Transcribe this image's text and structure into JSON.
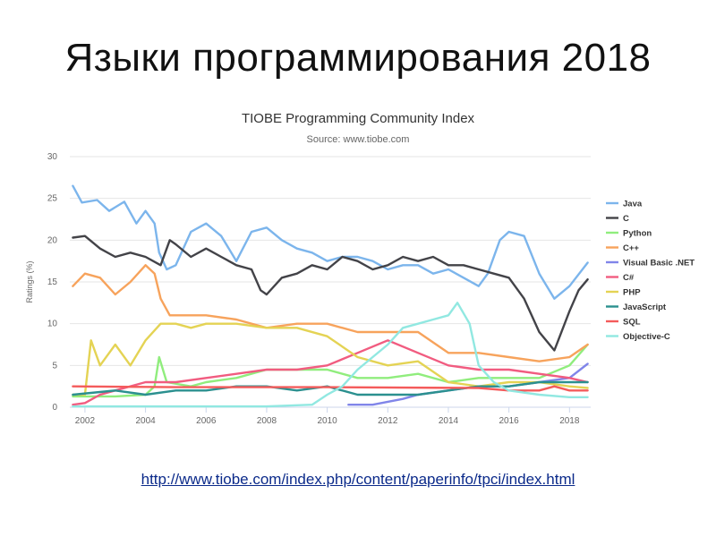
{
  "slide": {
    "title": "Языки программирования 2018",
    "link": "http://www.tiobe.com/index.php/content/paperinfo/tpci/index.html"
  },
  "chart_data": {
    "type": "line",
    "title": "TIOBE Programming Community Index",
    "subtitle": "Source: www.tiobe.com",
    "ylabel": "Ratings (%)",
    "xlabel": "",
    "xlim": [
      2001.5,
      2018.7
    ],
    "ylim": [
      0,
      30
    ],
    "x_ticks": [
      "2002",
      "2004",
      "2006",
      "2008",
      "2010",
      "2012",
      "2014",
      "2016",
      "2018"
    ],
    "y_ticks": [
      "0",
      "5",
      "10",
      "15",
      "20",
      "25",
      "30"
    ],
    "grid": true,
    "legend_position": "right",
    "series": [
      {
        "name": "Java",
        "color": "#7cb5ec",
        "points": [
          [
            2001.6,
            26.5
          ],
          [
            2001.9,
            24.5
          ],
          [
            2002.4,
            24.8
          ],
          [
            2002.8,
            23.5
          ],
          [
            2003.3,
            24.6
          ],
          [
            2003.7,
            22.0
          ],
          [
            2004.0,
            23.5
          ],
          [
            2004.3,
            22.0
          ],
          [
            2004.45,
            18.5
          ],
          [
            2004.7,
            16.5
          ],
          [
            2005.0,
            17.0
          ],
          [
            2005.5,
            21.0
          ],
          [
            2006.0,
            22.0
          ],
          [
            2006.5,
            20.5
          ],
          [
            2007.0,
            17.5
          ],
          [
            2007.5,
            21.0
          ],
          [
            2008.0,
            21.5
          ],
          [
            2008.5,
            20.0
          ],
          [
            2009.0,
            19.0
          ],
          [
            2009.5,
            18.5
          ],
          [
            2010.0,
            17.5
          ],
          [
            2010.5,
            18.0
          ],
          [
            2011.0,
            18.0
          ],
          [
            2011.5,
            17.5
          ],
          [
            2012.0,
            16.5
          ],
          [
            2012.5,
            17.0
          ],
          [
            2013.0,
            17.0
          ],
          [
            2013.5,
            16.0
          ],
          [
            2014.0,
            16.5
          ],
          [
            2014.5,
            15.5
          ],
          [
            2015.0,
            14.5
          ],
          [
            2015.3,
            16.0
          ],
          [
            2015.7,
            20.0
          ],
          [
            2016.0,
            21.0
          ],
          [
            2016.5,
            20.5
          ],
          [
            2017.0,
            16.0
          ],
          [
            2017.5,
            13.0
          ],
          [
            2018.0,
            14.5
          ],
          [
            2018.6,
            17.3
          ]
        ]
      },
      {
        "name": "C",
        "color": "#434348",
        "points": [
          [
            2001.6,
            20.3
          ],
          [
            2002.0,
            20.5
          ],
          [
            2002.5,
            19.0
          ],
          [
            2003.0,
            18.0
          ],
          [
            2003.5,
            18.5
          ],
          [
            2004.0,
            18.0
          ],
          [
            2004.5,
            17.0
          ],
          [
            2004.8,
            20.0
          ],
          [
            2005.0,
            19.5
          ],
          [
            2005.5,
            18.0
          ],
          [
            2006.0,
            19.0
          ],
          [
            2006.5,
            18.0
          ],
          [
            2007.0,
            17.0
          ],
          [
            2007.5,
            16.5
          ],
          [
            2007.8,
            14.0
          ],
          [
            2008.0,
            13.5
          ],
          [
            2008.5,
            15.5
          ],
          [
            2009.0,
            16.0
          ],
          [
            2009.5,
            17.0
          ],
          [
            2010.0,
            16.5
          ],
          [
            2010.5,
            18.0
          ],
          [
            2011.0,
            17.5
          ],
          [
            2011.5,
            16.5
          ],
          [
            2012.0,
            17.0
          ],
          [
            2012.5,
            18.0
          ],
          [
            2013.0,
            17.5
          ],
          [
            2013.5,
            18.0
          ],
          [
            2014.0,
            17.0
          ],
          [
            2014.5,
            17.0
          ],
          [
            2015.0,
            16.5
          ],
          [
            2015.5,
            16.0
          ],
          [
            2016.0,
            15.5
          ],
          [
            2016.5,
            13.0
          ],
          [
            2017.0,
            9.0
          ],
          [
            2017.5,
            6.8
          ],
          [
            2018.0,
            11.5
          ],
          [
            2018.3,
            14.0
          ],
          [
            2018.6,
            15.3
          ]
        ]
      },
      {
        "name": "Python",
        "color": "#90ed7d",
        "points": [
          [
            2001.6,
            1.3
          ],
          [
            2003.0,
            1.3
          ],
          [
            2004.0,
            1.5
          ],
          [
            2004.3,
            2.5
          ],
          [
            2004.45,
            6.0
          ],
          [
            2004.7,
            3.0
          ],
          [
            2005.5,
            2.5
          ],
          [
            2006.0,
            3.0
          ],
          [
            2007.0,
            3.5
          ],
          [
            2008.0,
            4.5
          ],
          [
            2009.0,
            4.5
          ],
          [
            2010.0,
            4.5
          ],
          [
            2011.0,
            3.5
          ],
          [
            2012.0,
            3.5
          ],
          [
            2013.0,
            4.0
          ],
          [
            2014.0,
            3.0
          ],
          [
            2015.0,
            3.5
          ],
          [
            2016.0,
            3.5
          ],
          [
            2017.0,
            3.5
          ],
          [
            2018.0,
            5.0
          ],
          [
            2018.6,
            7.5
          ]
        ]
      },
      {
        "name": "C++",
        "color": "#f7a35c",
        "points": [
          [
            2001.6,
            14.5
          ],
          [
            2002.0,
            16.0
          ],
          [
            2002.5,
            15.5
          ],
          [
            2003.0,
            13.5
          ],
          [
            2003.5,
            15.0
          ],
          [
            2004.0,
            17.0
          ],
          [
            2004.3,
            16.0
          ],
          [
            2004.5,
            13.0
          ],
          [
            2004.8,
            11.0
          ],
          [
            2005.5,
            11.0
          ],
          [
            2006.0,
            11.0
          ],
          [
            2007.0,
            10.5
          ],
          [
            2008.0,
            9.5
          ],
          [
            2009.0,
            10.0
          ],
          [
            2010.0,
            10.0
          ],
          [
            2011.0,
            9.0
          ],
          [
            2012.0,
            9.0
          ],
          [
            2013.0,
            9.0
          ],
          [
            2014.0,
            6.5
          ],
          [
            2015.0,
            6.5
          ],
          [
            2016.0,
            6.0
          ],
          [
            2017.0,
            5.5
          ],
          [
            2018.0,
            6.0
          ],
          [
            2018.6,
            7.5
          ]
        ]
      },
      {
        "name": "Visual Basic .NET",
        "color": "#8085e9",
        "points": [
          [
            2010.7,
            0.3
          ],
          [
            2011.5,
            0.3
          ],
          [
            2012.5,
            1.0
          ],
          [
            2013.0,
            1.5
          ],
          [
            2014.0,
            2.0
          ],
          [
            2015.0,
            2.5
          ],
          [
            2016.0,
            2.5
          ],
          [
            2017.0,
            3.0
          ],
          [
            2018.0,
            3.5
          ],
          [
            2018.6,
            5.2
          ]
        ]
      },
      {
        "name": "C#",
        "color": "#f15c80",
        "points": [
          [
            2001.6,
            0.3
          ],
          [
            2002.0,
            0.5
          ],
          [
            2002.5,
            1.5
          ],
          [
            2003.0,
            2.0
          ],
          [
            2004.0,
            3.0
          ],
          [
            2005.0,
            3.0
          ],
          [
            2006.0,
            3.5
          ],
          [
            2007.0,
            4.0
          ],
          [
            2008.0,
            4.5
          ],
          [
            2009.0,
            4.5
          ],
          [
            2010.0,
            5.0
          ],
          [
            2011.0,
            6.5
          ],
          [
            2012.0,
            8.0
          ],
          [
            2013.0,
            6.5
          ],
          [
            2014.0,
            5.0
          ],
          [
            2015.0,
            4.5
          ],
          [
            2016.0,
            4.5
          ],
          [
            2017.0,
            4.0
          ],
          [
            2018.0,
            3.5
          ],
          [
            2018.6,
            3.0
          ]
        ]
      },
      {
        "name": "PHP",
        "color": "#e4d354",
        "points": [
          [
            2001.6,
            1.5
          ],
          [
            2002.0,
            1.5
          ],
          [
            2002.2,
            8.0
          ],
          [
            2002.5,
            5.0
          ],
          [
            2003.0,
            7.5
          ],
          [
            2003.5,
            5.0
          ],
          [
            2004.0,
            8.0
          ],
          [
            2004.5,
            10.0
          ],
          [
            2005.0,
            10.0
          ],
          [
            2005.5,
            9.5
          ],
          [
            2006.0,
            10.0
          ],
          [
            2007.0,
            10.0
          ],
          [
            2008.0,
            9.5
          ],
          [
            2009.0,
            9.5
          ],
          [
            2010.0,
            8.5
          ],
          [
            2011.0,
            6.0
          ],
          [
            2012.0,
            5.0
          ],
          [
            2013.0,
            5.5
          ],
          [
            2014.0,
            3.0
          ],
          [
            2015.0,
            2.5
          ],
          [
            2016.0,
            3.0
          ],
          [
            2017.0,
            3.0
          ],
          [
            2018.0,
            2.5
          ],
          [
            2018.6,
            2.3
          ]
        ]
      },
      {
        "name": "JavaScript",
        "color": "#2b908f",
        "points": [
          [
            2001.6,
            1.5
          ],
          [
            2003.0,
            2.0
          ],
          [
            2004.0,
            1.5
          ],
          [
            2005.0,
            2.0
          ],
          [
            2006.0,
            2.0
          ],
          [
            2007.0,
            2.5
          ],
          [
            2008.0,
            2.5
          ],
          [
            2009.0,
            2.0
          ],
          [
            2010.0,
            2.5
          ],
          [
            2011.0,
            1.5
          ],
          [
            2012.0,
            1.5
          ],
          [
            2013.0,
            1.5
          ],
          [
            2014.0,
            2.0
          ],
          [
            2015.0,
            2.5
          ],
          [
            2016.0,
            2.5
          ],
          [
            2017.0,
            3.0
          ],
          [
            2018.0,
            3.0
          ],
          [
            2018.6,
            3.0
          ]
        ]
      },
      {
        "name": "SQL",
        "color": "#f45b5b",
        "points": [
          [
            2001.6,
            2.5
          ],
          [
            2005.0,
            2.4
          ],
          [
            2010.0,
            2.4
          ],
          [
            2015.0,
            2.3
          ],
          [
            2016.0,
            2.0
          ],
          [
            2017.0,
            2.0
          ],
          [
            2017.5,
            2.5
          ],
          [
            2018.0,
            2.0
          ],
          [
            2018.6,
            2.0
          ]
        ]
      },
      {
        "name": "Objective-C",
        "color": "#91e8e1",
        "points": [
          [
            2001.6,
            0.1
          ],
          [
            2005.0,
            0.1
          ],
          [
            2008.0,
            0.1
          ],
          [
            2009.5,
            0.3
          ],
          [
            2010.0,
            1.5
          ],
          [
            2010.5,
            2.5
          ],
          [
            2011.0,
            4.5
          ],
          [
            2011.5,
            6.0
          ],
          [
            2012.0,
            7.5
          ],
          [
            2012.5,
            9.5
          ],
          [
            2013.0,
            10.0
          ],
          [
            2013.5,
            10.5
          ],
          [
            2014.0,
            11.0
          ],
          [
            2014.3,
            12.5
          ],
          [
            2014.7,
            10.0
          ],
          [
            2015.0,
            5.0
          ],
          [
            2015.5,
            3.0
          ],
          [
            2016.0,
            2.0
          ],
          [
            2017.0,
            1.5
          ],
          [
            2018.0,
            1.2
          ],
          [
            2018.6,
            1.2
          ]
        ]
      }
    ]
  }
}
